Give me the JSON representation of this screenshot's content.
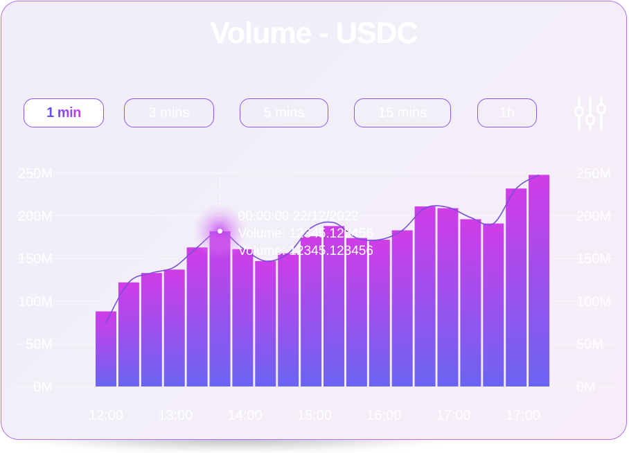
{
  "title": "Volume - USDC",
  "tabs": [
    {
      "label": "1 min",
      "active": true
    },
    {
      "label": "3 mins",
      "active": false
    },
    {
      "label": "5 mins",
      "active": false
    },
    {
      "label": "15 mins",
      "active": false
    },
    {
      "label": "1h",
      "active": false
    }
  ],
  "settings_icon": "sliders-icon",
  "colors": {
    "bar_top": "#d03ce8",
    "bar_bottom": "#6a64f2",
    "line": "#7a4fd8",
    "border": "#b66cf0"
  },
  "chart_data": {
    "type": "bar",
    "title": "Volume - USDC",
    "x_tick_labels": [
      "12:00",
      "13:00",
      "14:00",
      "15:00",
      "16:00",
      "17:00",
      "17:00"
    ],
    "y_tick_labels": [
      "0M",
      "50M",
      "100M",
      "150M",
      "200M",
      "250M"
    ],
    "ylim": [
      0,
      250
    ],
    "values": [
      88,
      122,
      133,
      137,
      163,
      182,
      161,
      147,
      156,
      176,
      188,
      174,
      172,
      183,
      211,
      209,
      196,
      191,
      232,
      248
    ],
    "line_values": [
      75,
      122,
      133,
      140,
      163,
      182,
      162,
      147,
      156,
      186,
      192,
      174,
      172,
      183,
      209,
      210,
      198,
      191,
      232,
      248
    ],
    "grid": true,
    "legend": "none",
    "highlighted_index": 5,
    "tooltip": {
      "time": "00:00:00 22/12/2022",
      "line1": "Volume: 12345.123456",
      "line2": "Volume: 12345.123456"
    }
  }
}
